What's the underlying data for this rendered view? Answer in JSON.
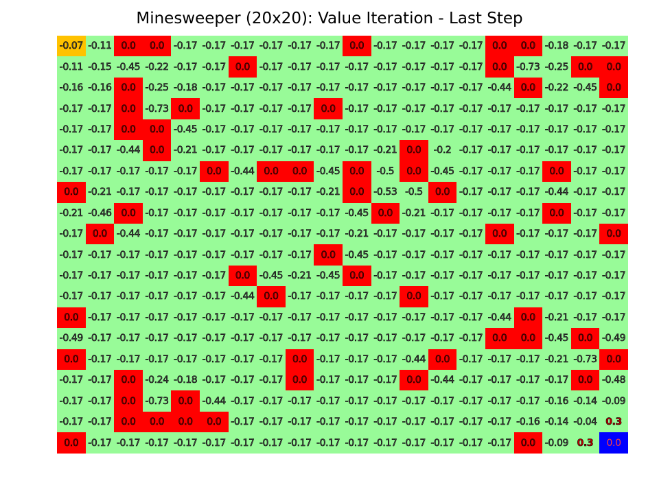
{
  "title": "Minesweeper (20x20): Value Iteration - Last Step",
  "colors": {
    "safe": "#98fb98",
    "mine": "#ff0000",
    "start": "#ffc200",
    "goal": "#0000ff",
    "text_default": "#555555",
    "text_mine": "#8b0000",
    "text_positive": "#c00000",
    "text_goal": "#ff4040"
  },
  "grid": {
    "rows": 20,
    "cols": 20,
    "cells": [
      [
        "-0.07",
        "-0.11",
        "0.0",
        "0.0",
        "-0.17",
        "-0.17",
        "-0.17",
        "-0.17",
        "-0.17",
        "-0.17",
        "0.0",
        "-0.17",
        "-0.17",
        "-0.17",
        "-0.17",
        "0.0",
        "0.0",
        "-0.18",
        "-0.17",
        "-0.17"
      ],
      [
        "-0.11",
        "-0.15",
        "-0.45",
        "-0.22",
        "-0.17",
        "-0.17",
        "0.0",
        "-0.17",
        "-0.17",
        "-0.17",
        "-0.17",
        "-0.17",
        "-0.17",
        "-0.17",
        "-0.17",
        "0.0",
        "-0.73",
        "-0.25",
        "0.0",
        "0.0"
      ],
      [
        "-0.16",
        "-0.16",
        "0.0",
        "-0.25",
        "-0.18",
        "-0.17",
        "-0.17",
        "-0.17",
        "-0.17",
        "-0.17",
        "-0.17",
        "-0.17",
        "-0.17",
        "-0.17",
        "-0.17",
        "-0.44",
        "0.0",
        "-0.22",
        "-0.45",
        "0.0"
      ],
      [
        "-0.17",
        "-0.17",
        "0.0",
        "-0.73",
        "0.0",
        "-0.17",
        "-0.17",
        "-0.17",
        "-0.17",
        "0.0",
        "-0.17",
        "-0.17",
        "-0.17",
        "-0.17",
        "-0.17",
        "-0.17",
        "-0.17",
        "-0.17",
        "-0.17",
        "-0.17"
      ],
      [
        "-0.17",
        "-0.17",
        "0.0",
        "0.0",
        "-0.45",
        "-0.17",
        "-0.17",
        "-0.17",
        "-0.17",
        "-0.17",
        "-0.17",
        "-0.17",
        "-0.17",
        "-0.17",
        "-0.17",
        "-0.17",
        "-0.17",
        "-0.17",
        "-0.17",
        "-0.17"
      ],
      [
        "-0.17",
        "-0.17",
        "-0.44",
        "0.0",
        "-0.21",
        "-0.17",
        "-0.17",
        "-0.17",
        "-0.17",
        "-0.17",
        "-0.17",
        "-0.21",
        "0.0",
        "-0.2",
        "-0.17",
        "-0.17",
        "-0.17",
        "-0.17",
        "-0.17",
        "-0.17"
      ],
      [
        "-0.17",
        "-0.17",
        "-0.17",
        "-0.17",
        "-0.17",
        "0.0",
        "-0.44",
        "0.0",
        "0.0",
        "-0.45",
        "0.0",
        "-0.5",
        "0.0",
        "-0.45",
        "-0.17",
        "-0.17",
        "-0.17",
        "0.0",
        "-0.17",
        "-0.17"
      ],
      [
        "0.0",
        "-0.21",
        "-0.17",
        "-0.17",
        "-0.17",
        "-0.17",
        "-0.17",
        "-0.17",
        "-0.17",
        "-0.21",
        "0.0",
        "-0.53",
        "-0.5",
        "0.0",
        "-0.17",
        "-0.17",
        "-0.17",
        "-0.44",
        "-0.17",
        "-0.17"
      ],
      [
        "-0.21",
        "-0.46",
        "0.0",
        "-0.17",
        "-0.17",
        "-0.17",
        "-0.17",
        "-0.17",
        "-0.17",
        "-0.17",
        "-0.45",
        "0.0",
        "-0.21",
        "-0.17",
        "-0.17",
        "-0.17",
        "-0.17",
        "0.0",
        "-0.17",
        "-0.17"
      ],
      [
        "-0.17",
        "0.0",
        "-0.44",
        "-0.17",
        "-0.17",
        "-0.17",
        "-0.17",
        "-0.17",
        "-0.17",
        "-0.17",
        "-0.21",
        "-0.17",
        "-0.17",
        "-0.17",
        "-0.17",
        "0.0",
        "-0.17",
        "-0.17",
        "-0.17",
        "0.0"
      ],
      [
        "-0.17",
        "-0.17",
        "-0.17",
        "-0.17",
        "-0.17",
        "-0.17",
        "-0.17",
        "-0.17",
        "-0.17",
        "0.0",
        "-0.45",
        "-0.17",
        "-0.17",
        "-0.17",
        "-0.17",
        "-0.17",
        "-0.17",
        "-0.17",
        "-0.17",
        "-0.17"
      ],
      [
        "-0.17",
        "-0.17",
        "-0.17",
        "-0.17",
        "-0.17",
        "-0.17",
        "0.0",
        "-0.45",
        "-0.21",
        "-0.45",
        "0.0",
        "-0.17",
        "-0.17",
        "-0.17",
        "-0.17",
        "-0.17",
        "-0.17",
        "-0.17",
        "-0.17",
        "-0.17"
      ],
      [
        "-0.17",
        "-0.17",
        "-0.17",
        "-0.17",
        "-0.17",
        "-0.17",
        "-0.44",
        "0.0",
        "-0.17",
        "-0.17",
        "-0.17",
        "-0.17",
        "0.0",
        "-0.17",
        "-0.17",
        "-0.17",
        "-0.17",
        "-0.17",
        "-0.17",
        "-0.17"
      ],
      [
        "0.0",
        "-0.17",
        "-0.17",
        "-0.17",
        "-0.17",
        "-0.17",
        "-0.17",
        "-0.17",
        "-0.17",
        "-0.17",
        "-0.17",
        "-0.17",
        "-0.17",
        "-0.17",
        "-0.17",
        "-0.44",
        "0.0",
        "-0.21",
        "-0.17",
        "-0.17"
      ],
      [
        "-0.49",
        "-0.17",
        "-0.17",
        "-0.17",
        "-0.17",
        "-0.17",
        "-0.17",
        "-0.17",
        "-0.17",
        "-0.17",
        "-0.17",
        "-0.17",
        "-0.17",
        "-0.17",
        "-0.17",
        "0.0",
        "0.0",
        "-0.45",
        "0.0",
        "-0.49"
      ],
      [
        "0.0",
        "-0.17",
        "-0.17",
        "-0.17",
        "-0.17",
        "-0.17",
        "-0.17",
        "-0.17",
        "0.0",
        "-0.17",
        "-0.17",
        "-0.17",
        "-0.44",
        "0.0",
        "-0.17",
        "-0.17",
        "-0.17",
        "-0.21",
        "-0.73",
        "0.0"
      ],
      [
        "-0.17",
        "-0.17",
        "0.0",
        "-0.24",
        "-0.18",
        "-0.17",
        "-0.17",
        "-0.17",
        "0.0",
        "-0.17",
        "-0.17",
        "-0.17",
        "0.0",
        "-0.44",
        "-0.17",
        "-0.17",
        "-0.17",
        "-0.17",
        "0.0",
        "-0.48"
      ],
      [
        "-0.17",
        "-0.17",
        "0.0",
        "-0.73",
        "0.0",
        "-0.44",
        "-0.17",
        "-0.17",
        "-0.17",
        "-0.17",
        "-0.17",
        "-0.17",
        "-0.17",
        "-0.17",
        "-0.17",
        "-0.17",
        "-0.17",
        "-0.16",
        "-0.14",
        "-0.09"
      ],
      [
        "-0.17",
        "-0.17",
        "0.0",
        "0.0",
        "0.0",
        "0.0",
        "-0.17",
        "-0.17",
        "-0.17",
        "-0.17",
        "-0.17",
        "-0.17",
        "-0.17",
        "-0.17",
        "-0.17",
        "-0.17",
        "-0.16",
        "-0.14",
        "-0.04",
        "0.3"
      ],
      [
        "0.0",
        "-0.17",
        "-0.17",
        "-0.17",
        "-0.17",
        "-0.17",
        "-0.17",
        "-0.17",
        "-0.17",
        "-0.17",
        "-0.17",
        "-0.17",
        "-0.17",
        "-0.17",
        "-0.17",
        "-0.17",
        "0.0",
        "-0.09",
        "0.3",
        "0.0"
      ]
    ],
    "types": [
      "SSMMSSSSSSMSSSSMMSSS",
      "SSSSSSMSSSSSSSSMSSMM",
      "SSMSSSSSSSSSSSSSMSSM",
      "SSMSMSSSSMSSSSSSSSSS",
      "SSMMSSSSSSSSSSSSSSSS",
      "SSSMSSSSSSSSMSSSSSSS",
      "SSSSSMSMMSMSMSSSSMSS",
      "MSSSSSSSSSMSSMSSSSSS",
      "SSMSSSSSSSSMSSSSSMSS",
      "SMSSSSSSSSSSSSSMSSSM",
      "SSSSSSSSSMSSSSSSSSSS",
      "SSSSSSMSSSMSSSSSSSSS",
      "SSSSSSSMSSSSMSSSSSSS",
      "MSSSSSSSSSSSSSSSMSSS",
      "SSSSSSSSSSSSSSSMMSMS",
      "MSSSSSSSMSSSSMSSSSSM",
      "SSMSSSSSMSSSMSSSSSMS",
      "SSMSMSSSSSSSSSSSSSSS",
      "SSMMMMSSSSSSSSSSSSSS",
      "MSSSSSSSSSSSSSSSMSSG"
    ],
    "start": [
      0,
      0
    ]
  }
}
